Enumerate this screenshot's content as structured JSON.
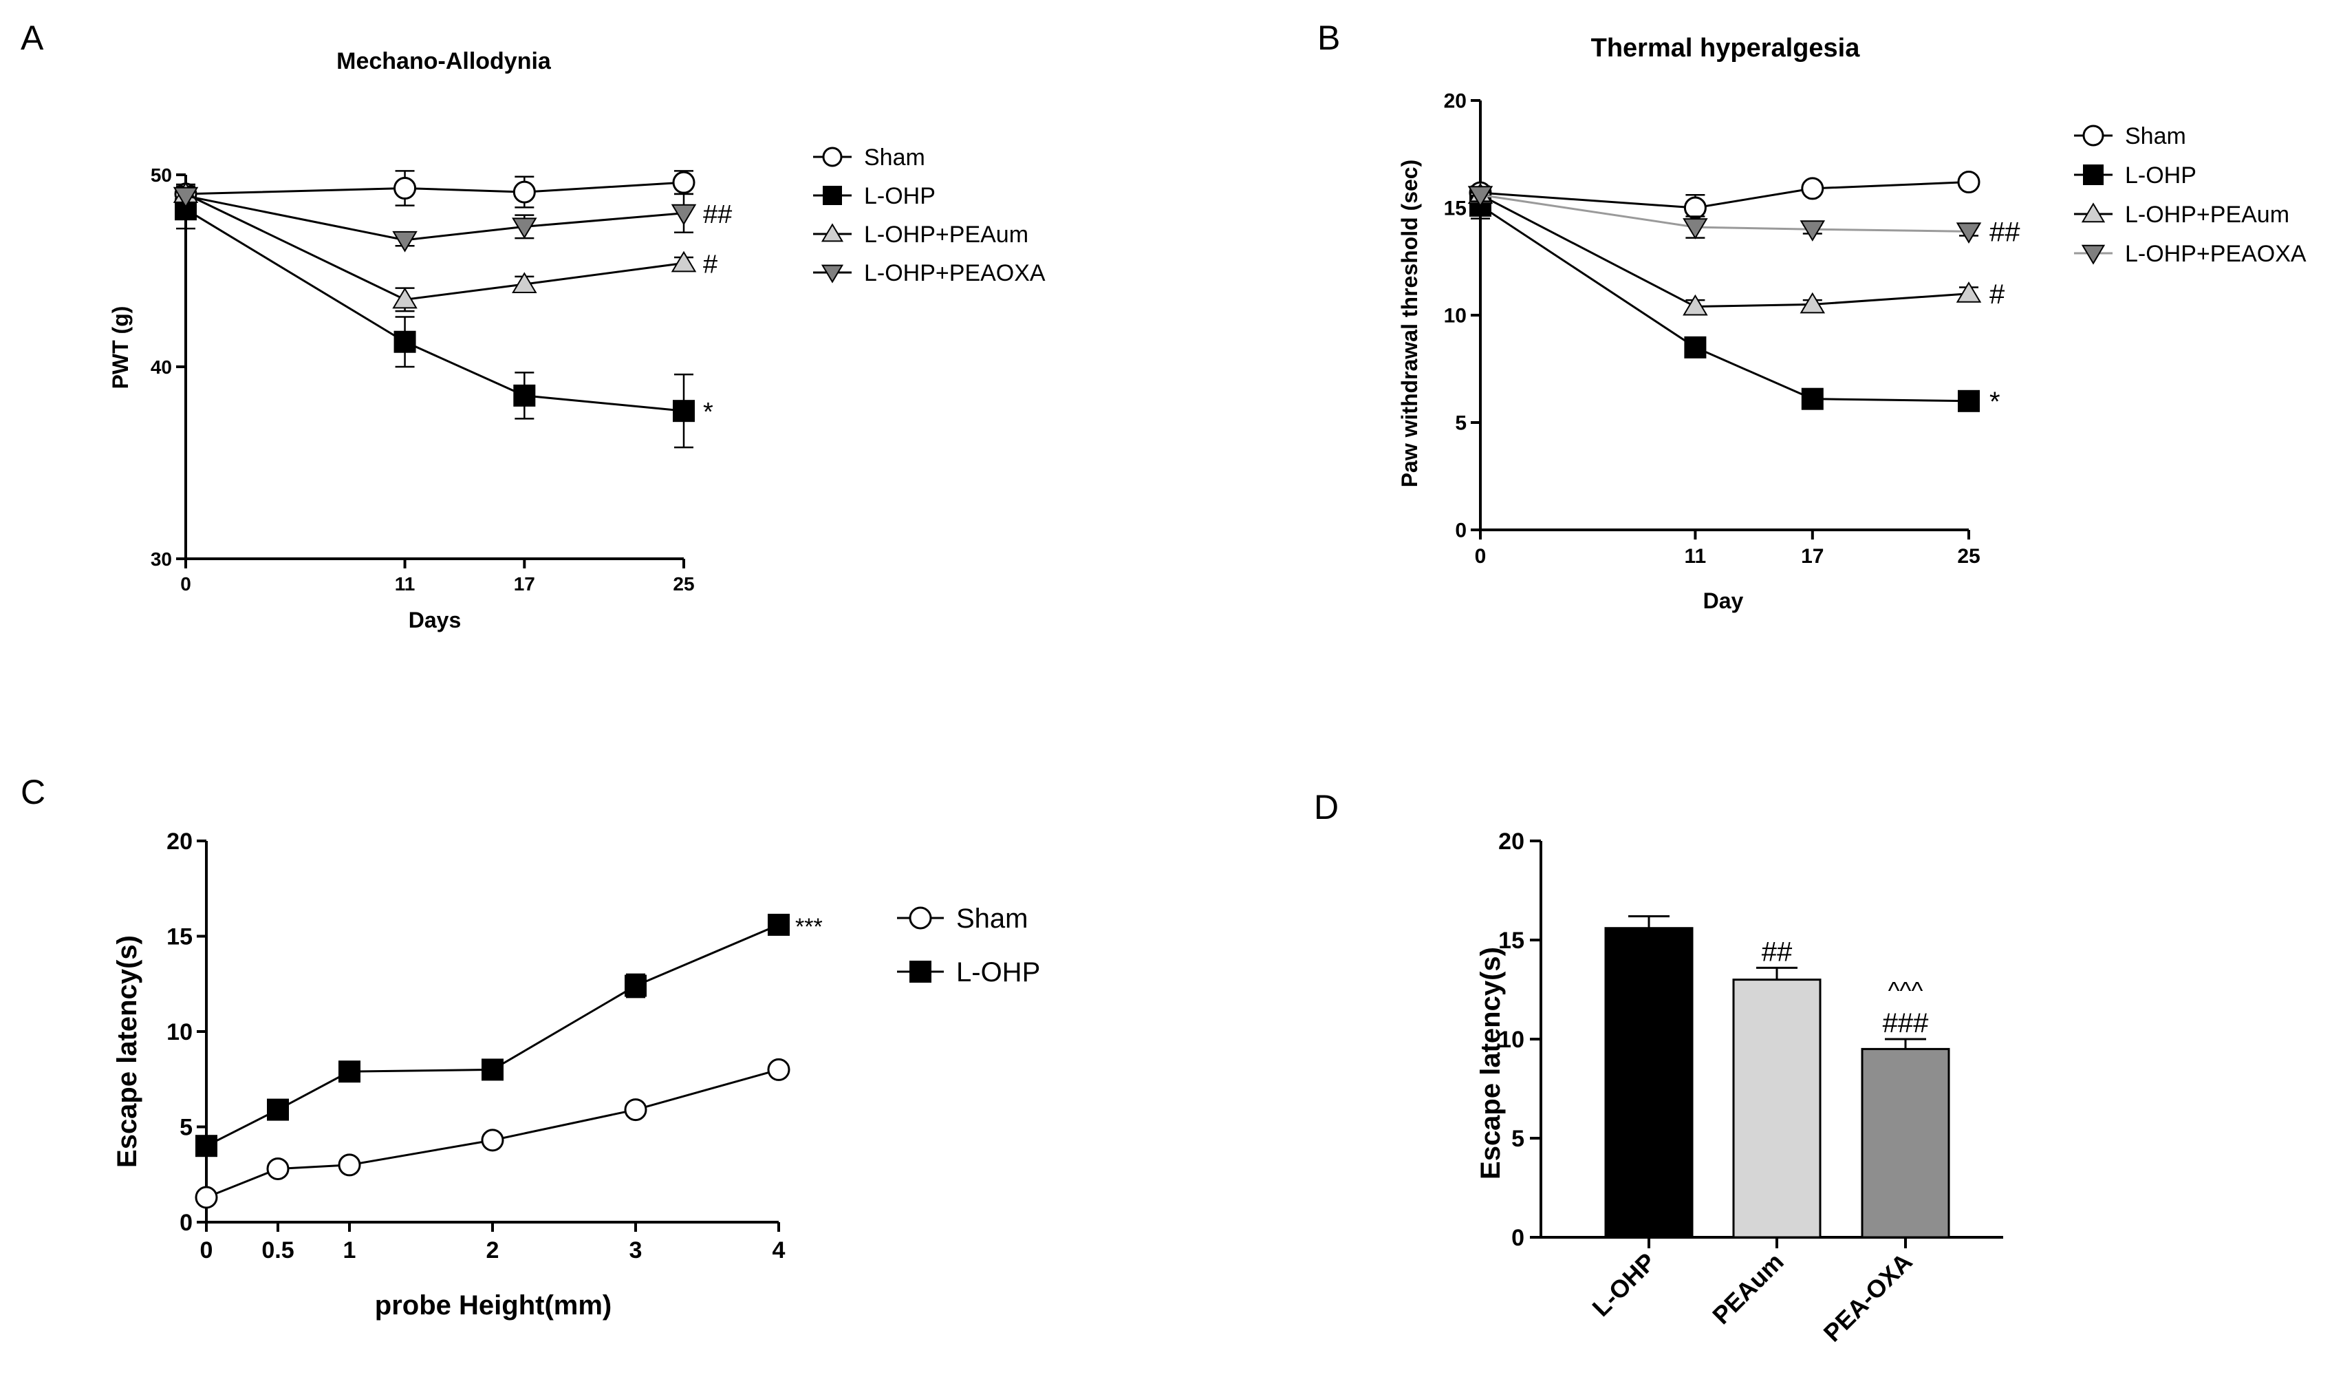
{
  "chart_data": [
    {
      "panel": "A",
      "type": "line",
      "title": "Mechano-Allodynia",
      "xlabel": "Days",
      "ylabel": "PWT (g)",
      "x": [
        0,
        11,
        17,
        25
      ],
      "x_ticks": [
        "0",
        "11",
        "17",
        "25"
      ],
      "xlim": [
        0,
        25
      ],
      "ylim": [
        30,
        50
      ],
      "y_ticks": [
        "30",
        "40",
        "50"
      ],
      "series": [
        {
          "name": "Sham",
          "marker": "circle-open",
          "color": "#ffffff",
          "line": "#000000",
          "values": [
            49.0,
            49.3,
            49.1,
            49.6
          ],
          "errors": [
            0.5,
            0.9,
            0.8,
            0.6
          ],
          "annotation": ""
        },
        {
          "name": "L-OHP",
          "marker": "square",
          "color": "#000000",
          "line": "#000000",
          "values": [
            48.2,
            41.3,
            38.5,
            37.7
          ],
          "errors": [
            1.0,
            1.3,
            1.2,
            1.9
          ],
          "annotation": "*"
        },
        {
          "name": "L-OHP+PEAum",
          "marker": "triangle-up",
          "color": "#cfcfcf",
          "line": "#000000",
          "values": [
            49.0,
            43.5,
            44.3,
            45.4
          ],
          "errors": [
            0.4,
            0.6,
            0.4,
            0.3
          ],
          "annotation": "#"
        },
        {
          "name": "L-OHP+PEAOXA",
          "marker": "triangle-down",
          "color": "#7f7f7f",
          "line": "#000000",
          "values": [
            48.9,
            46.6,
            47.3,
            48.0
          ],
          "errors": [
            0.4,
            0.3,
            0.6,
            1.0
          ],
          "annotation": "##"
        }
      ]
    },
    {
      "panel": "B",
      "type": "line",
      "title": "Thermal hyperalgesia",
      "xlabel": "Day",
      "ylabel": "Paw withdrawal threshold (sec)",
      "x": [
        0,
        11,
        17,
        25
      ],
      "x_ticks": [
        "0",
        "11",
        "17",
        "25"
      ],
      "xlim": [
        0,
        25
      ],
      "ylim": [
        0,
        20
      ],
      "y_ticks": [
        "0",
        "5",
        "10",
        "15",
        "20"
      ],
      "series": [
        {
          "name": "Sham",
          "marker": "circle-open",
          "color": "#ffffff",
          "line": "#000000",
          "values": [
            15.7,
            15.0,
            15.9,
            16.2
          ],
          "errors": [
            0.3,
            0.6,
            0.2,
            0.2
          ],
          "annotation": ""
        },
        {
          "name": "L-OHP",
          "marker": "square",
          "color": "#000000",
          "line": "#000000",
          "values": [
            15.1,
            8.5,
            6.1,
            6.0
          ],
          "errors": [
            0.6,
            0.3,
            0.2,
            0.2
          ],
          "annotation": "*"
        },
        {
          "name": "L-OHP+PEAum",
          "marker": "triangle-up",
          "color": "#cfcfcf",
          "line": "#000000",
          "values": [
            15.6,
            10.4,
            10.5,
            11.0
          ],
          "errors": [
            0.3,
            0.3,
            0.2,
            0.3
          ],
          "annotation": "#"
        },
        {
          "name": "L-OHP+PEAOXA",
          "marker": "triangle-down",
          "color": "#7f7f7f",
          "line": "#9a9a9a",
          "values": [
            15.6,
            14.1,
            14.0,
            13.9
          ],
          "errors": [
            0.3,
            0.5,
            0.2,
            0.2
          ],
          "annotation": "##"
        }
      ]
    },
    {
      "panel": "C",
      "type": "line",
      "title": "",
      "xlabel": "probe Height(mm)",
      "ylabel": "Escape latency(s)",
      "x": [
        0,
        0.5,
        1,
        2,
        3,
        4
      ],
      "x_ticks": [
        "0",
        "0.5",
        "1",
        "2",
        "3",
        "4"
      ],
      "xlim": [
        0,
        4
      ],
      "ylim": [
        0,
        20
      ],
      "y_ticks": [
        "0",
        "5",
        "10",
        "15",
        "20"
      ],
      "series": [
        {
          "name": "Sham",
          "marker": "circle-open",
          "color": "#ffffff",
          "line": "#000000",
          "values": [
            1.3,
            2.8,
            3.0,
            4.3,
            5.9,
            8.0
          ],
          "errors": [
            0.2,
            0.2,
            0.2,
            0.2,
            0.2,
            0.2
          ],
          "annotation": ""
        },
        {
          "name": "L-OHP",
          "marker": "square",
          "color": "#000000",
          "line": "#000000",
          "values": [
            4.0,
            5.9,
            7.9,
            8.0,
            12.4,
            15.6
          ],
          "errors": [
            0.3,
            0.3,
            0.3,
            0.3,
            0.6,
            0.3
          ],
          "annotation": "***"
        }
      ]
    },
    {
      "panel": "D",
      "type": "bar",
      "title": "",
      "xlabel": "",
      "ylabel": "Escape latency(s)",
      "categories": [
        "L-OHP",
        "PEAum",
        "PEA-OXA"
      ],
      "values": [
        15.6,
        13.0,
        9.5
      ],
      "errors": [
        0.6,
        0.6,
        0.5
      ],
      "colors": [
        "#000000",
        "#d6d6d6",
        "#8e8e8e"
      ],
      "annotations": [
        "",
        "##",
        "###"
      ],
      "annotations_top": [
        "",
        "",
        "^^^"
      ],
      "ylim": [
        0,
        20
      ],
      "y_ticks": [
        "0",
        "5",
        "10",
        "15",
        "20"
      ]
    }
  ],
  "panel_letters": [
    "A",
    "B",
    "C",
    "D"
  ]
}
